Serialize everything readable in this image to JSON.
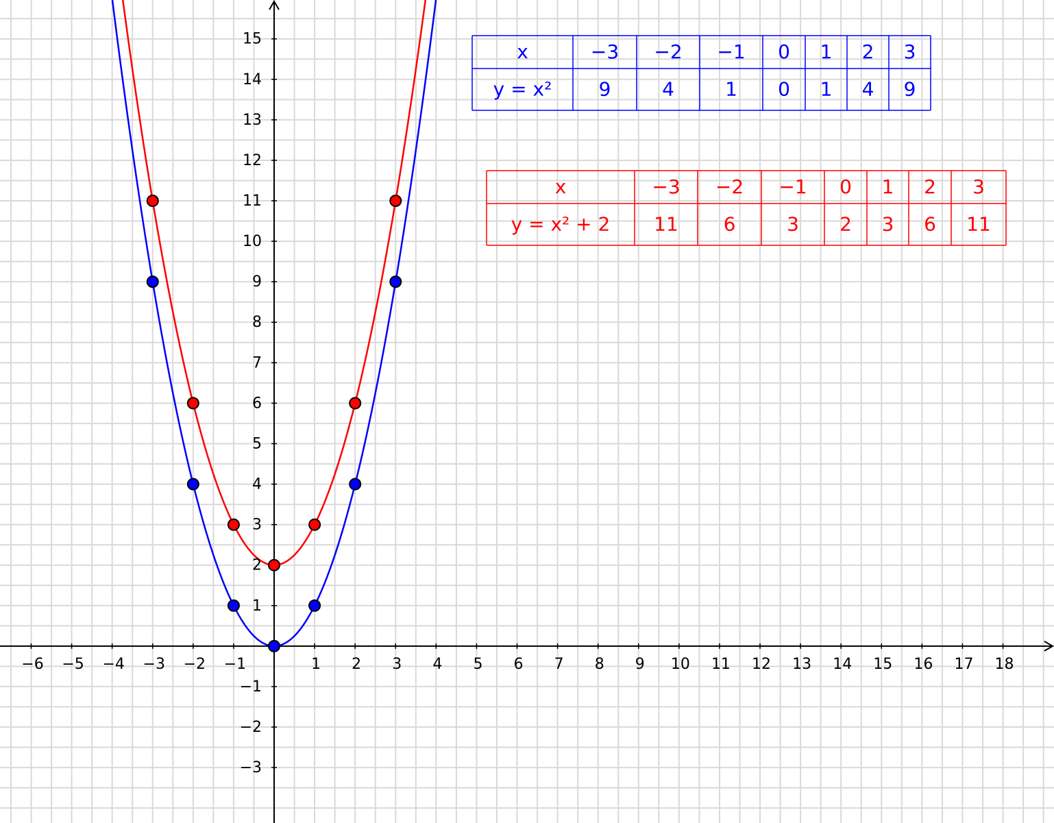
{
  "chart_data": {
    "type": "scatter",
    "xlim": [
      -6.77,
      19.26
    ],
    "ylim": [
      -4.37,
      15.96
    ],
    "xticks": [
      {
        "value": -6,
        "label": "−6"
      },
      {
        "value": -5,
        "label": "−5"
      },
      {
        "value": -4,
        "label": "−4"
      },
      {
        "value": -3,
        "label": "−3"
      },
      {
        "value": -2,
        "label": "−2"
      },
      {
        "value": -1,
        "label": "−1"
      },
      1,
      2,
      3,
      4,
      5,
      6,
      7,
      8,
      9,
      10,
      11,
      12,
      13,
      14,
      15,
      16,
      17,
      18
    ],
    "yticks": [
      {
        "value": -3,
        "label": "−3"
      },
      {
        "value": -2,
        "label": "−2"
      },
      {
        "value": -1,
        "label": "−1"
      },
      1,
      2,
      3,
      4,
      5,
      6,
      7,
      8,
      9,
      10,
      11,
      12,
      13,
      14,
      15
    ],
    "grid": true,
    "minor_grid_step": 0.5,
    "series": [
      {
        "color": "#0000ff",
        "x": [
          -3,
          -2,
          -1,
          0,
          1,
          2,
          3
        ],
        "values": [
          9,
          4,
          1,
          0,
          1,
          4,
          9
        ]
      },
      {
        "color": "#ff0000",
        "x": [
          -3,
          -2,
          -1,
          0,
          1,
          2,
          3
        ],
        "values": [
          11,
          6,
          3,
          2,
          3,
          6,
          11
        ]
      }
    ]
  },
  "tables": [
    {
      "color": "#0000ff",
      "rows": [
        [
          "x",
          "−3",
          "−2",
          "−1",
          "0",
          "1",
          "2",
          "3"
        ],
        [
          "y = x²",
          "9",
          "4",
          "1",
          "0",
          "1",
          "4",
          "9"
        ]
      ]
    },
    {
      "color": "#ff0000",
      "rows": [
        [
          "x",
          "−3",
          "−2",
          "−1",
          "0",
          "1",
          "2",
          "3"
        ],
        [
          "y = x² + 2",
          "11",
          "6",
          "3",
          "2",
          "3",
          "6",
          "11"
        ]
      ]
    }
  ]
}
